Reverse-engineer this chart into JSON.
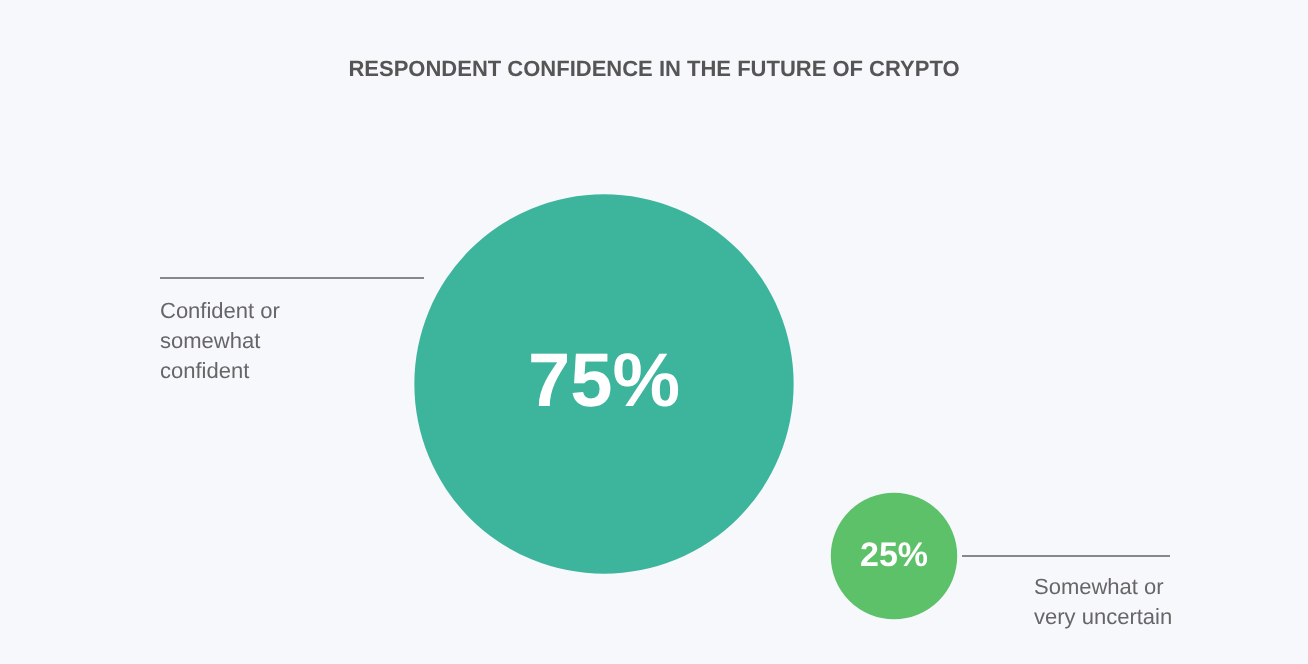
{
  "chart_data": {
    "type": "other",
    "title": "RESPONDENT CONFIDENCE IN THE FUTURE OF CRYPTO",
    "categories": [
      "Confident or\nsomewhat\nconfident",
      "Somewhat or\nvery uncertain"
    ],
    "values": [
      75,
      25
    ],
    "value_labels": [
      "75%",
      "25%"
    ],
    "colors": [
      "#3db59c",
      "#5cc168"
    ]
  }
}
